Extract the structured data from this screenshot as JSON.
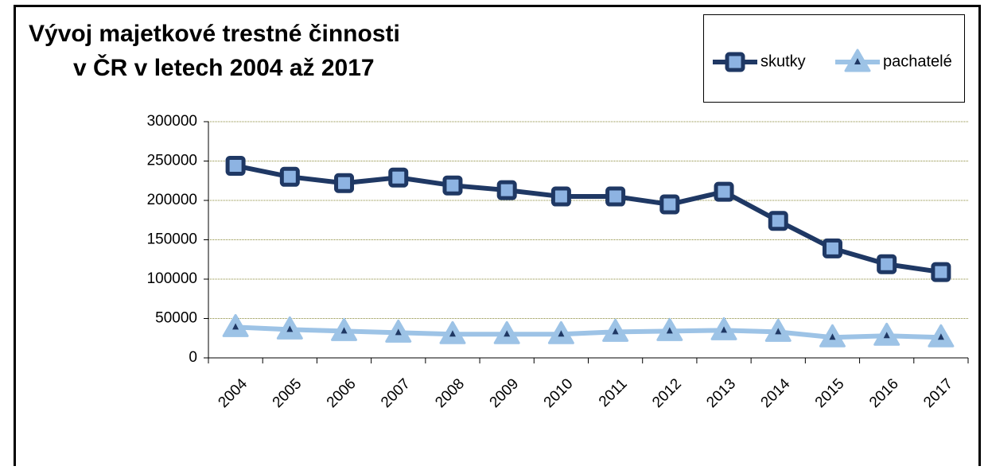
{
  "chart_data": {
    "type": "line",
    "title": [
      "Vývoj majetkové trestné činnosti",
      "v ČR v letech 2004 až 2017"
    ],
    "categories": [
      "2004",
      "2005",
      "2006",
      "2007",
      "2008",
      "2009",
      "2010",
      "2011",
      "2012",
      "2013",
      "2014",
      "2015",
      "2016",
      "2017"
    ],
    "series": [
      {
        "name": "skutky",
        "color": "#1f3864",
        "marker": "square",
        "values": [
          244000,
          230000,
          222000,
          229000,
          219000,
          213000,
          205000,
          205000,
          195000,
          211000,
          174000,
          139000,
          119000,
          109000
        ]
      },
      {
        "name": "pachatelé",
        "color": "#9dc3e6",
        "marker": "triangle",
        "values": [
          39000,
          36000,
          34000,
          32000,
          30000,
          30000,
          30000,
          33000,
          34000,
          35000,
          33000,
          26000,
          28000,
          26000
        ]
      }
    ],
    "ylim": [
      0,
      300000
    ],
    "yticks": [
      0,
      50000,
      100000,
      150000,
      200000,
      250000,
      300000
    ],
    "grid": true,
    "legend": "top-right"
  }
}
